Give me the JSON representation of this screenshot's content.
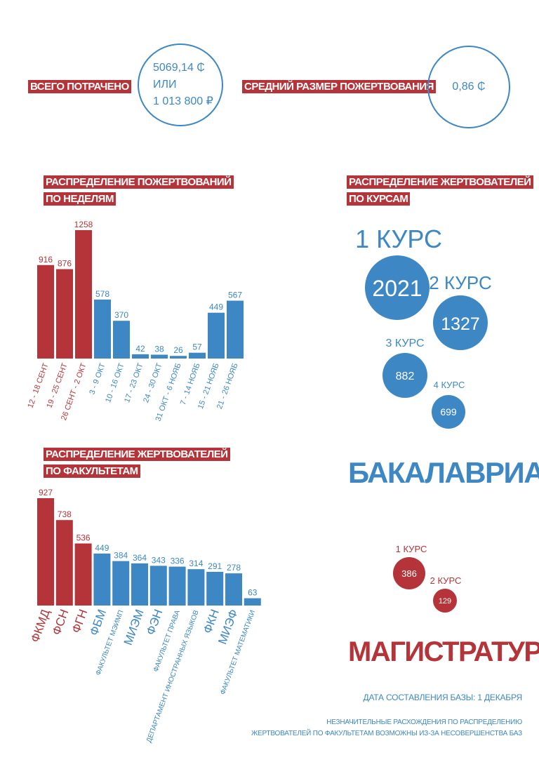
{
  "summary": {
    "total_label": "ВСЕГО ПОТРАЧЕНО",
    "total_line1": "5069,14 ₵",
    "total_line2": "ИЛИ",
    "total_line3": "1 013 800 ₽",
    "avg_label": "СРЕДНИЙ РАЗМЕР ПОЖЕРТВОВАНИЯ",
    "avg_value": "0,86 ₵"
  },
  "colors": {
    "red": "#b5343a",
    "blue": "#3d88c4"
  },
  "weekly": {
    "title1": "РАСПРЕДЕЛЕНИЕ ПОЖЕРТВОВАНИЙ",
    "title2": "ПО НЕДЕЛЯМ"
  },
  "courses": {
    "title1": "РАСПРЕДЕЛЕНИЕ ЖЕРТВОВАТЕЛЕЙ",
    "title2": "ПО КУРСАМ",
    "bachelor_label": "БАКАЛАВРИАТ",
    "master_label": "МАГИСТРАТУРА",
    "bachelor": [
      {
        "label": "1 КУРС",
        "value": "2021"
      },
      {
        "label": "2 КУРС",
        "value": "1327"
      },
      {
        "label": "3 КУРС",
        "value": "882"
      },
      {
        "label": "4 КУРС",
        "value": "699"
      }
    ],
    "master": [
      {
        "label": "1 КУРС",
        "value": "386"
      },
      {
        "label": "2 КУРС",
        "value": "129"
      }
    ]
  },
  "faculty": {
    "title1": "РАСПРЕДЕЛЕНИЕ ЖЕРТВОВАТЕЛЕЙ",
    "title2": "ПО ФАКУЛЬТЕТАМ"
  },
  "footer": {
    "date": "ДАТА СОСТАВЛЕНИЯ БАЗЫ: 1 ДЕКАБРЯ",
    "note1": "НЕЗНАЧИТЕЛЬНЫЕ РАСХОЖДЕНИЯ ПО РАСПРЕДЕЛЕНИЮ",
    "note2": "ЖЕРТВОВАТЕЛЕЙ ПО ФАКУЛЬТЕТАМ ВОЗМОЖНЫ ИЗ-ЗА НЕСОВЕРШЕНСТВА БАЗ"
  },
  "chart_data": [
    {
      "type": "bar",
      "title": "РАСПРЕДЕЛЕНИЕ ПОЖЕРТВОВАНИЙ ПО НЕДЕЛЯМ",
      "categories": [
        "12 - 18 СЕНТ",
        "19 - 25 СЕНТ",
        "26 СЕНТ - 2 ОКТ",
        "3 - 9 ОКТ",
        "10 - 16 ОКТ",
        "17 - 23 ОКТ",
        "24 - 30 ОКТ",
        "31 ОКТ - 6 НОЯБ",
        "7 - 14 НОЯБ",
        "15 - 21 НОЯБ",
        "21 - 26 НОЯБ"
      ],
      "values": [
        916,
        876,
        1258,
        578,
        370,
        42,
        38,
        26,
        57,
        449,
        567
      ],
      "highlight_count": 3,
      "ylim": [
        0,
        1258
      ]
    },
    {
      "type": "bar",
      "title": "РАСПРЕДЕЛЕНИЕ ЖЕРТВОВАТЕЛЕЙ ПО ФАКУЛЬТЕТАМ",
      "categories": [
        "ФКМД",
        "ФСН",
        "ФГН",
        "ФБМ",
        "ФАКУЛЬТЕТ МЭИМП",
        "МИЭМ",
        "ФЭН",
        "ФАКУЛЬТЕТ ПРАВА",
        "ДЕПАРТАМЕНТ ИНОСТРАННЫХ ЯЗЫКОВ",
        "ФКН",
        "МИЭФ",
        "ФАКУЛЬТЕТ МАТЕМАТИКИ"
      ],
      "values": [
        927,
        738,
        536,
        449,
        384,
        364,
        343,
        336,
        314,
        291,
        278,
        63
      ],
      "highlight_count": 3,
      "ylim": [
        0,
        927
      ]
    },
    {
      "type": "bubble",
      "title": "РАСПРЕДЕЛЕНИЕ ЖЕРТВОВАТЕЛЕЙ ПО КУРСАМ",
      "series": [
        {
          "name": "БАКАЛАВРИАТ",
          "categories": [
            "1 КУРС",
            "2 КУРС",
            "3 КУРС",
            "4 КУРС"
          ],
          "values": [
            2021,
            1327,
            882,
            699
          ]
        },
        {
          "name": "МАГИСТРАТУРА",
          "categories": [
            "1 КУРС",
            "2 КУРС"
          ],
          "values": [
            386,
            129
          ]
        }
      ]
    }
  ]
}
